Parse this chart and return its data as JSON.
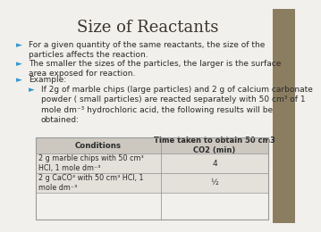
{
  "title": "Size of Reactants",
  "title_fontsize": 13,
  "title_color": "#3a3530",
  "background_color": "#f2f0ec",
  "bullet_color": "#3399cc",
  "text_color": "#2a2a2a",
  "bullets": [
    "For a given quantity of the same reactants, the size of the\nparticles affects the reaction.",
    "The smaller the sizes of the particles, the larger is the surface\narea exposed for reaction.",
    "Example:",
    "If 2g of marble chips (large particles) and 2 g of calcium carbonate\npowder ( small particles) are reacted separately with 50 cm³ of 1\nmole dm⁻³ hydrochloric acid, the following results will be\nobtained:"
  ],
  "table_header": [
    "Conditions",
    "Time taken to obtain 50 cm3\nCO2 (min)"
  ],
  "table_rows": [
    [
      "2 g marble chips with 50 cm³\nHCl, 1 mole dm⁻³",
      "4"
    ],
    [
      "2 g CaCO³ with 50 cm³ HCl, 1\nmole dm⁻³",
      "½"
    ]
  ],
  "table_header_bg": "#ccc8c0",
  "table_row_bg": "#e4e0da",
  "table_border_color": "#999999",
  "right_panel_color": "#8a7d60"
}
